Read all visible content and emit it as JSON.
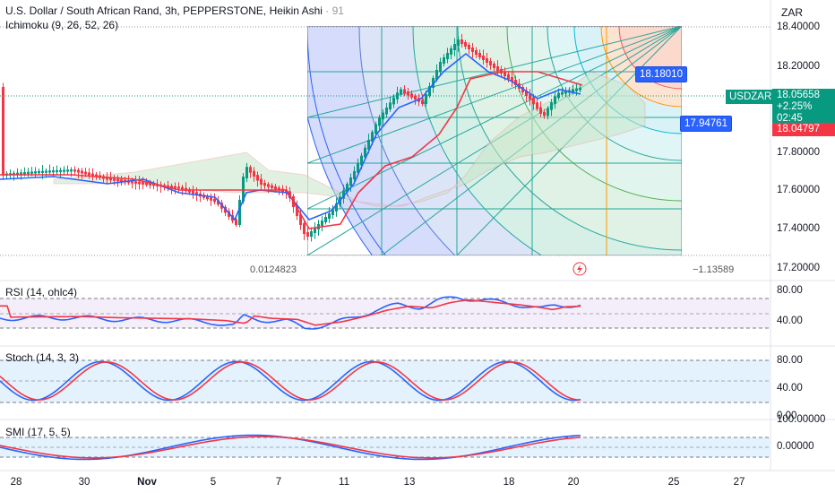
{
  "header": {
    "title": "U.S. Dollar / South African Rand, 3h, PEPPERSTONE, Heikin Ashi",
    "title_suffix": "91",
    "ichimoku": "Ichimoku (9, 26, 52, 26)"
  },
  "currency": "ZAR",
  "price_axis": [
    "18.40000",
    "18.20000",
    "18.00000",
    "17.80000",
    "17.60000",
    "17.40000",
    "17.20000"
  ],
  "price_tag": {
    "symbol": "USDZAR",
    "price": "18.05658",
    "change": "+2.25%",
    "countdown": "02:45",
    "ask": "18.04797"
  },
  "fib_labels": {
    "upper": "18.18010",
    "lower": "17.94761"
  },
  "chart_notes": {
    "left": "0.0124823",
    "right": "−1.13589"
  },
  "panes": {
    "rsi": {
      "label": "RSI (14, ohlc4)",
      "levels": [
        "80.00",
        "40.00"
      ]
    },
    "stoch": {
      "label": "Stoch (14, 3, 3)",
      "levels": [
        "80.00",
        "40.00",
        "0.00"
      ]
    },
    "smi": {
      "label": "SMI (17, 5, 5)",
      "levels": [
        "100.00000",
        "0.00000"
      ]
    }
  },
  "time_axis": [
    "28",
    "30",
    "Nov",
    "5",
    "7",
    "11",
    "13",
    "18",
    "20",
    "25",
    "27"
  ],
  "colors": {
    "up": "#089981",
    "down": "#f23645",
    "blue": "#2962ff",
    "red": "#f23645"
  },
  "icons": {
    "alert": "lightning-icon"
  }
}
